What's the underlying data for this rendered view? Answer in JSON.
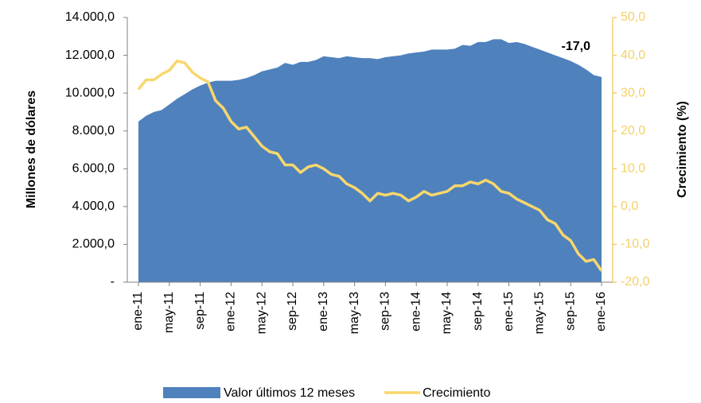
{
  "chart_data": {
    "type": "combo",
    "y_label": "Millones de dólares",
    "y2_label": "Crecimiento  (%)",
    "categories": [
      "ene-11",
      null,
      null,
      null,
      "may-11",
      null,
      null,
      null,
      "sep-11",
      null,
      null,
      null,
      "ene-12",
      null,
      null,
      null,
      "may-12",
      null,
      null,
      null,
      "sep-12",
      null,
      null,
      null,
      "ene-13",
      null,
      null,
      null,
      "may-13",
      null,
      null,
      null,
      "sep-13",
      null,
      null,
      null,
      "ene-14",
      null,
      null,
      null,
      "may-14",
      null,
      null,
      null,
      "sep-14",
      null,
      null,
      null,
      "ene-15",
      null,
      null,
      null,
      "may-15",
      null,
      null,
      null,
      "sep-15",
      null,
      null,
      null,
      "ene-16"
    ],
    "series": [
      {
        "name": "Valor últimos 12 meses",
        "type": "area",
        "color": "#4f81bd",
        "values": [
          8500,
          8800,
          9000,
          9100,
          9400,
          9700,
          9950,
          10200,
          10400,
          10550,
          10650,
          10650,
          10650,
          10700,
          10800,
          10950,
          11150,
          11250,
          11350,
          11600,
          11500,
          11650,
          11650,
          11750,
          11950,
          11900,
          11850,
          11950,
          11900,
          11850,
          11850,
          11800,
          11900,
          11950,
          12000,
          12100,
          12150,
          12200,
          12300,
          12300,
          12300,
          12350,
          12550,
          12500,
          12700,
          12700,
          12850,
          12850,
          12650,
          12700,
          12600,
          12450,
          12300,
          12150,
          12000,
          11850,
          11700,
          11500,
          11250,
          10950,
          10850
        ]
      },
      {
        "name": "Crecimiento",
        "type": "line",
        "axis": "y2",
        "color": "#f7d76c",
        "values": [
          31,
          33.5,
          33.5,
          35,
          36,
          38.5,
          38,
          35.5,
          34,
          33,
          28,
          26,
          22.5,
          20.5,
          21,
          18.5,
          16,
          14.5,
          14,
          11,
          11,
          9,
          10.5,
          11,
          10,
          8.5,
          8,
          6,
          5,
          3.5,
          1.5,
          3.5,
          3,
          3.5,
          3,
          1.5,
          2.5,
          4,
          3,
          3.5,
          4,
          5.5,
          5.5,
          6.5,
          6,
          7,
          6,
          4,
          3.5,
          2,
          1,
          0,
          -1,
          -3.5,
          -4.5,
          -7.5,
          -9,
          -12.5,
          -14.5,
          -14,
          -17
        ],
        "value_labels": [
          null,
          null,
          null,
          null,
          null,
          null,
          null,
          null,
          null,
          null,
          null,
          null,
          null,
          null,
          null,
          null,
          null,
          null,
          null,
          null,
          null,
          null,
          null,
          null,
          null,
          null,
          null,
          null,
          null,
          null,
          null,
          null,
          null,
          null,
          null,
          null,
          null,
          null,
          null,
          null,
          null,
          null,
          null,
          null,
          null,
          null,
          null,
          null,
          null,
          null,
          null,
          null,
          null,
          null,
          null,
          null,
          null,
          null,
          null,
          null,
          "-17,0"
        ]
      }
    ],
    "ylim": [
      0,
      14000
    ],
    "yticks": [
      {
        "value": 0,
        "label": "-"
      },
      {
        "value": 2000,
        "label": "2.000,0"
      },
      {
        "value": 4000,
        "label": "4.000,0"
      },
      {
        "value": 6000,
        "label": "6.000,0"
      },
      {
        "value": 8000,
        "label": "8.000,0"
      },
      {
        "value": 10000,
        "label": "10.000,0"
      },
      {
        "value": 12000,
        "label": "12.000,0"
      },
      {
        "value": 14000,
        "label": "14.000,0"
      }
    ],
    "y2lim": [
      -20,
      50
    ],
    "y2ticks": [
      {
        "value": -20,
        "label": "-20,0"
      },
      {
        "value": -10,
        "label": "-10,0"
      },
      {
        "value": 0,
        "label": "0,0"
      },
      {
        "value": 10,
        "label": "10,0"
      },
      {
        "value": 20,
        "label": "20,0"
      },
      {
        "value": 30,
        "label": "30,0"
      },
      {
        "value": 40,
        "label": "40,0"
      },
      {
        "value": 50,
        "label": "50,0"
      }
    ]
  }
}
